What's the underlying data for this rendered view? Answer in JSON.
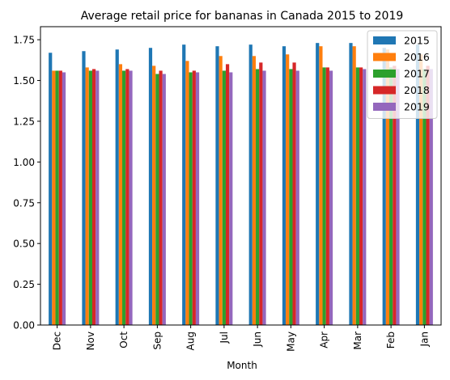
{
  "chart_data": {
    "type": "bar",
    "title": "Average retail price for bananas in Canada 2015 to 2019",
    "xlabel": "Month",
    "ylabel": "",
    "ylim": [
      0,
      1.83
    ],
    "yticks": [
      0.0,
      0.25,
      0.5,
      0.75,
      1.0,
      1.25,
      1.5,
      1.75
    ],
    "ytick_labels": [
      "0.00",
      "0.25",
      "0.50",
      "0.75",
      "1.00",
      "1.25",
      "1.50",
      "1.75"
    ],
    "categories": [
      "Dec",
      "Nov",
      "Oct",
      "Sep",
      "Aug",
      "Jul",
      "Jun",
      "May",
      "Apr",
      "Mar",
      "Feb",
      "Jan"
    ],
    "legend_position": "top-right",
    "grid": false,
    "series": [
      {
        "name": "2015",
        "color": "#1f77b4",
        "values": [
          1.67,
          1.68,
          1.69,
          1.7,
          1.72,
          1.71,
          1.72,
          1.71,
          1.73,
          1.73,
          1.7,
          1.72
        ]
      },
      {
        "name": "2016",
        "color": "#ff7f0e",
        "values": [
          1.56,
          1.58,
          1.6,
          1.59,
          1.62,
          1.65,
          1.65,
          1.66,
          1.71,
          1.71,
          1.69,
          1.66
        ]
      },
      {
        "name": "2017",
        "color": "#2ca02c",
        "values": [
          1.56,
          1.56,
          1.56,
          1.54,
          1.55,
          1.56,
          1.57,
          1.57,
          1.58,
          1.58,
          1.58,
          1.57
        ]
      },
      {
        "name": "2018",
        "color": "#d62728",
        "values": [
          1.56,
          1.57,
          1.57,
          1.56,
          1.56,
          1.6,
          1.61,
          1.61,
          1.58,
          1.58,
          1.59,
          1.59
        ]
      },
      {
        "name": "2019",
        "color": "#9467bd",
        "values": [
          1.55,
          1.56,
          1.56,
          1.54,
          1.55,
          1.55,
          1.56,
          1.56,
          1.56,
          1.57,
          1.57,
          1.57
        ]
      }
    ]
  }
}
